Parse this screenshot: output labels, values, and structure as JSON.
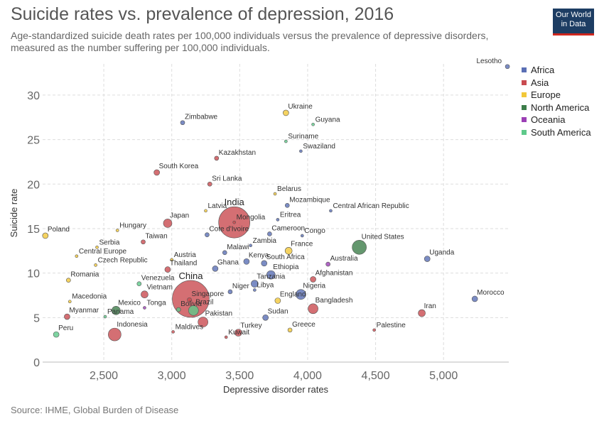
{
  "header": {
    "title": "Suicide rates vs. prevalence of depression, 2016",
    "subtitle": "Age-standardized suicide death rates per 100,000 individuals versus the prevalence of depressive disorders, measured as the number suffering per 100,000 individuals.",
    "logo_line1": "Our World",
    "logo_line2": "in Data"
  },
  "footer": {
    "source": "Source: IHME, Global Burden of Disease"
  },
  "chart_data": {
    "type": "scatter",
    "title": "Suicide rates vs. prevalence of depression, 2016",
    "xlabel": "Depressive disorder rates",
    "ylabel": "Suicide rate",
    "xlim": [
      2050,
      5480
    ],
    "ylim": [
      0,
      33.5
    ],
    "x_ticks": [
      2500,
      3000,
      3500,
      4000,
      4500,
      5000
    ],
    "x_tick_labels": [
      "2,500",
      "3,000",
      "3,500",
      "4,000",
      "4,500",
      "5,000"
    ],
    "y_ticks": [
      0,
      5,
      10,
      15,
      20,
      25,
      30
    ],
    "y_tick_labels": [
      "0",
      "5",
      "10",
      "15",
      "20",
      "25",
      "30"
    ],
    "grid": true,
    "legend_position": "right",
    "colors": {
      "Africa": "#5a6fb5",
      "Asia": "#c94b50",
      "Europe": "#f2c83a",
      "North America": "#3d7d4a",
      "Oceania": "#9b3fb5",
      "South America": "#5ec98a"
    },
    "legend": [
      "Africa",
      "Asia",
      "Europe",
      "North America",
      "Oceania",
      "South America"
    ],
    "points": [
      {
        "label": "Lesotho",
        "x": 5470,
        "y": 33.2,
        "region": "Africa",
        "size": 3
      },
      {
        "label": "Ukraine",
        "x": 3840,
        "y": 28.0,
        "region": "Europe",
        "size": 4
      },
      {
        "label": "Guyana",
        "x": 4040,
        "y": 26.7,
        "region": "South America",
        "size": 2
      },
      {
        "label": "Zimbabwe",
        "x": 3080,
        "y": 26.9,
        "region": "Africa",
        "size": 3
      },
      {
        "label": "Suriname",
        "x": 3840,
        "y": 24.8,
        "region": "South America",
        "size": 2
      },
      {
        "label": "Swaziland",
        "x": 3950,
        "y": 23.7,
        "region": "Africa",
        "size": 2
      },
      {
        "label": "Kazakhstan",
        "x": 3330,
        "y": 22.9,
        "region": "Asia",
        "size": 3
      },
      {
        "label": "South Korea",
        "x": 2890,
        "y": 21.3,
        "region": "Asia",
        "size": 4
      },
      {
        "label": "Sri Lanka",
        "x": 3280,
        "y": 20.0,
        "region": "Asia",
        "size": 3
      },
      {
        "label": "Belarus",
        "x": 3760,
        "y": 18.9,
        "region": "Europe",
        "size": 2
      },
      {
        "label": "Mozambique",
        "x": 3850,
        "y": 17.6,
        "region": "Africa",
        "size": 3
      },
      {
        "label": "Central African Republic",
        "x": 4170,
        "y": 17.0,
        "region": "Africa",
        "size": 2
      },
      {
        "label": "Latvia",
        "x": 3250,
        "y": 17.0,
        "region": "Europe",
        "size": 2
      },
      {
        "label": "India",
        "x": 3460,
        "y": 15.7,
        "region": "Asia",
        "size": 22
      },
      {
        "label": "Mongolia",
        "x": 3460,
        "y": 15.7,
        "region": "Asia",
        "size": 2
      },
      {
        "label": "Eritrea",
        "x": 3780,
        "y": 16.0,
        "region": "Africa",
        "size": 2
      },
      {
        "label": "Japan",
        "x": 2970,
        "y": 15.6,
        "region": "Asia",
        "size": 6
      },
      {
        "label": "Hungary",
        "x": 2600,
        "y": 14.8,
        "region": "Europe",
        "size": 2
      },
      {
        "label": "Poland",
        "x": 2070,
        "y": 14.2,
        "region": "Europe",
        "size": 4
      },
      {
        "label": "Cote d'Ivoire",
        "x": 3260,
        "y": 14.3,
        "region": "Africa",
        "size": 3
      },
      {
        "label": "Cameroon",
        "x": 3720,
        "y": 14.4,
        "region": "Africa",
        "size": 3
      },
      {
        "label": "Congo",
        "x": 3960,
        "y": 14.2,
        "region": "Africa",
        "size": 2
      },
      {
        "label": "United States",
        "x": 4380,
        "y": 12.9,
        "region": "North America",
        "size": 10
      },
      {
        "label": "Taiwan",
        "x": 2790,
        "y": 13.5,
        "region": "Asia",
        "size": 3
      },
      {
        "label": "Serbia",
        "x": 2450,
        "y": 12.9,
        "region": "Europe",
        "size": 2
      },
      {
        "label": "Zambia",
        "x": 3580,
        "y": 13.1,
        "region": "Africa",
        "size": 2
      },
      {
        "label": "Malawi",
        "x": 3390,
        "y": 12.3,
        "region": "Africa",
        "size": 3
      },
      {
        "label": "France",
        "x": 3860,
        "y": 12.5,
        "region": "Europe",
        "size": 5
      },
      {
        "label": "Central Europe",
        "x": 2300,
        "y": 11.9,
        "region": "Europe",
        "size": 2
      },
      {
        "label": "Uganda",
        "x": 4880,
        "y": 11.6,
        "region": "Africa",
        "size": 4
      },
      {
        "label": "Austria",
        "x": 3000,
        "y": 11.5,
        "region": "Europe",
        "size": 2
      },
      {
        "label": "Kenya",
        "x": 3550,
        "y": 11.3,
        "region": "Africa",
        "size": 4
      },
      {
        "label": "South Africa",
        "x": 3680,
        "y": 11.1,
        "region": "Africa",
        "size": 4
      },
      {
        "label": "Australia",
        "x": 4150,
        "y": 11.0,
        "region": "Oceania",
        "size": 3
      },
      {
        "label": "Czech Republic",
        "x": 2440,
        "y": 10.9,
        "region": "Europe",
        "size": 2
      },
      {
        "label": "Thailand",
        "x": 2970,
        "y": 10.4,
        "region": "Asia",
        "size": 4
      },
      {
        "label": "Ghana",
        "x": 3320,
        "y": 10.5,
        "region": "Africa",
        "size": 4
      },
      {
        "label": "Ethiopia",
        "x": 3730,
        "y": 9.8,
        "region": "Africa",
        "size": 6
      },
      {
        "label": "Tanzania",
        "x": 3610,
        "y": 8.8,
        "region": "Africa",
        "size": 5
      },
      {
        "label": "Afghanistan",
        "x": 4040,
        "y": 9.3,
        "region": "Asia",
        "size": 4
      },
      {
        "label": "Romania",
        "x": 2240,
        "y": 9.2,
        "region": "Europe",
        "size": 3
      },
      {
        "label": "Venezuela",
        "x": 2760,
        "y": 8.8,
        "region": "South America",
        "size": 3
      },
      {
        "label": "Libya",
        "x": 3610,
        "y": 8.1,
        "region": "Africa",
        "size": 2
      },
      {
        "label": "Nigeria",
        "x": 3950,
        "y": 7.6,
        "region": "Africa",
        "size": 7
      },
      {
        "label": "Vietnam",
        "x": 2800,
        "y": 7.6,
        "region": "Asia",
        "size": 5
      },
      {
        "label": "Niger",
        "x": 3430,
        "y": 7.9,
        "region": "Africa",
        "size": 3
      },
      {
        "label": "Macedonia",
        "x": 2250,
        "y": 6.8,
        "region": "Europe",
        "size": 2
      },
      {
        "label": "Singapore",
        "x": 3130,
        "y": 7.0,
        "region": "Asia",
        "size": 3
      },
      {
        "label": "China",
        "x": 3140,
        "y": 7.1,
        "region": "Asia",
        "size": 26
      },
      {
        "label": "England",
        "x": 3780,
        "y": 6.9,
        "region": "Europe",
        "size": 4
      },
      {
        "label": "Bangladesh",
        "x": 4040,
        "y": 6.0,
        "region": "Asia",
        "size": 7
      },
      {
        "label": "Morocco",
        "x": 5230,
        "y": 7.1,
        "region": "Africa",
        "size": 4
      },
      {
        "label": "Mexico",
        "x": 2590,
        "y": 5.8,
        "region": "North America",
        "size": 6
      },
      {
        "label": "Bolivia",
        "x": 3050,
        "y": 5.9,
        "region": "South America",
        "size": 3
      },
      {
        "label": "Brazil",
        "x": 3160,
        "y": 5.8,
        "region": "South America",
        "size": 7
      },
      {
        "label": "Tonga",
        "x": 2800,
        "y": 6.1,
        "region": "Oceania",
        "size": 2
      },
      {
        "label": "Iran",
        "x": 4840,
        "y": 5.5,
        "region": "Asia",
        "size": 5
      },
      {
        "label": "Myanmar",
        "x": 2230,
        "y": 5.1,
        "region": "Asia",
        "size": 4
      },
      {
        "label": "Panama",
        "x": 2510,
        "y": 5.1,
        "region": "South America",
        "size": 2
      },
      {
        "label": "Pakistan",
        "x": 3230,
        "y": 4.5,
        "region": "Asia",
        "size": 7
      },
      {
        "label": "Sudan",
        "x": 3690,
        "y": 5.0,
        "region": "Africa",
        "size": 4
      },
      {
        "label": "Indonesia",
        "x": 2580,
        "y": 3.1,
        "region": "Asia",
        "size": 9
      },
      {
        "label": "Maldives",
        "x": 3010,
        "y": 3.4,
        "region": "Asia",
        "size": 2
      },
      {
        "label": "Turkey",
        "x": 3490,
        "y": 3.3,
        "region": "Asia",
        "size": 5
      },
      {
        "label": "Greece",
        "x": 3870,
        "y": 3.6,
        "region": "Europe",
        "size": 3
      },
      {
        "label": "Palestine",
        "x": 4490,
        "y": 3.6,
        "region": "Asia",
        "size": 2
      },
      {
        "label": "Peru",
        "x": 2150,
        "y": 3.1,
        "region": "South America",
        "size": 4
      },
      {
        "label": "Kuwait",
        "x": 3400,
        "y": 2.8,
        "region": "Asia",
        "size": 2
      }
    ]
  }
}
